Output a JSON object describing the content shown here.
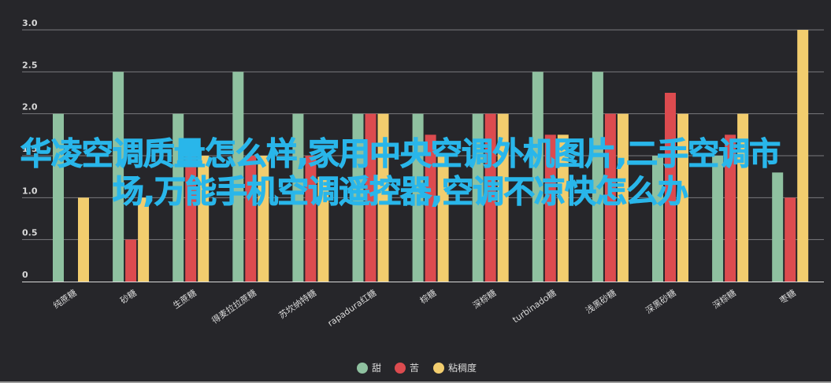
{
  "chart_data": {
    "type": "bar",
    "categories": [
      "纯蔗糖",
      "砂糖",
      "生蔗糖",
      "得麦拉拉蔗糖",
      "苏坎纳特糖",
      "rapadura红糖",
      "棕糖",
      "深棕糖",
      "turbinado糖",
      "浅黑砂糖",
      "深黑砂糖",
      "深棕糖",
      "枣糖"
    ],
    "series": [
      {
        "name": "甜",
        "color": "#8fc1a0",
        "values": [
          2.0,
          2.5,
          2.0,
          2.5,
          2.0,
          2.0,
          2.0,
          2.0,
          2.5,
          2.5,
          1.5,
          1.5,
          1.3
        ]
      },
      {
        "name": "苦",
        "color": "#dc4b4f",
        "values": [
          null,
          0.5,
          1.5,
          1.5,
          1.5,
          2.0,
          1.75,
          2.0,
          1.75,
          2.0,
          2.25,
          1.75,
          1.0
        ]
      },
      {
        "name": "粘稠度",
        "color": "#f2cd6e",
        "values": [
          1.0,
          1.0,
          1.5,
          1.5,
          1.25,
          2.0,
          1.5,
          2.0,
          1.75,
          2.0,
          2.0,
          2.0,
          3.0
        ]
      }
    ],
    "ylim": [
      0,
      3.0
    ],
    "yticks": [
      "0",
      "0.5",
      "1.0",
      "1.5",
      "2.0",
      "2.5",
      "3.0"
    ],
    "grid": true,
    "legend_position": "bottom-center"
  },
  "overlay_title": "华凌空调质量怎么样,家用中央空调外机图片,二手空调市场,万能手机空调遥控器,空调不凉快怎么办"
}
